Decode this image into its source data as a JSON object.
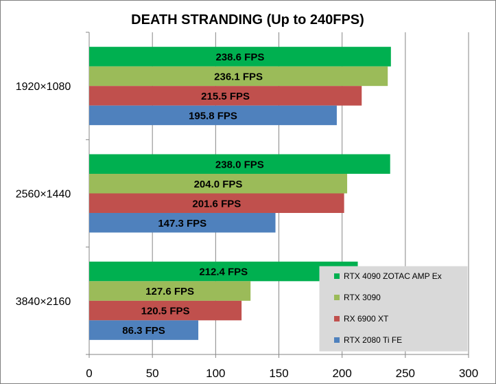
{
  "chart_data": {
    "type": "bar",
    "orientation": "horizontal",
    "title": "DEATH STRANDING (Up to 240FPS)",
    "xlabel": "",
    "ylabel": "",
    "xlim": [
      0,
      300
    ],
    "ticks": [
      "0",
      "50",
      "100",
      "150",
      "200",
      "250",
      "300"
    ],
    "tick_values": [
      0,
      50,
      100,
      150,
      200,
      250,
      300
    ],
    "categories": [
      "1920×1080",
      "2560×1440",
      "3840×2160"
    ],
    "series": [
      {
        "name": "RTX 4090 ZOTAC AMP Ex",
        "color": "#00b050",
        "values": [
          238.6,
          238.0,
          212.4
        ],
        "labels": [
          "238.6 FPS",
          "238.0 FPS",
          "212.4 FPS"
        ]
      },
      {
        "name": "RTX 3090",
        "color": "#9bbb59",
        "values": [
          236.1,
          204.0,
          127.6
        ],
        "labels": [
          "236.1 FPS",
          "204.0 FPS",
          "127.6 FPS"
        ]
      },
      {
        "name": "RX 6900 XT",
        "color": "#c0504d",
        "values": [
          215.5,
          201.6,
          120.5
        ],
        "labels": [
          "215.5 FPS",
          "201.6 FPS",
          "120.5 FPS"
        ]
      },
      {
        "name": "RTX 2080 Ti FE",
        "color": "#4f81bd",
        "values": [
          195.8,
          147.3,
          86.3
        ],
        "labels": [
          "195.8 FPS",
          "147.3 FPS",
          "86.3 FPS"
        ]
      }
    ],
    "grid": true,
    "legend_position": "bottom-right"
  }
}
